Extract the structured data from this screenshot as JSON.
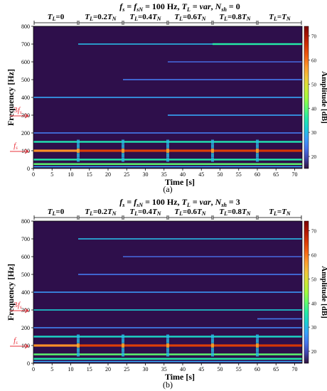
{
  "figure": {
    "panels": [
      {
        "caption": "(a)",
        "title_parts": [
          {
            "t": "f",
            "i": true
          },
          {
            "t": "s",
            "i": true,
            "sub": true
          },
          {
            "t": " = ",
            "i": false
          },
          {
            "t": "f",
            "i": true
          },
          {
            "t": "sN",
            "i": true,
            "sub": true
          },
          {
            "t": " = 100 Hz, ",
            "i": false
          },
          {
            "t": "T",
            "i": true
          },
          {
            "t": "L",
            "i": true,
            "sub": true
          },
          {
            "t": " = ",
            "i": false
          },
          {
            "t": "var",
            "i": true
          },
          {
            "t": ", ",
            "i": false
          },
          {
            "t": "N",
            "i": true
          },
          {
            "t": "sh",
            "i": true,
            "sub": true
          },
          {
            "t": " = 0",
            "i": false
          }
        ]
      },
      {
        "caption": "(b)",
        "title_parts": [
          {
            "t": "f",
            "i": true
          },
          {
            "t": "s",
            "i": true,
            "sub": true
          },
          {
            "t": " = ",
            "i": false
          },
          {
            "t": "f",
            "i": true
          },
          {
            "t": "sN",
            "i": true,
            "sub": true
          },
          {
            "t": " = 100 Hz, ",
            "i": false
          },
          {
            "t": "T",
            "i": true
          },
          {
            "t": "L",
            "i": true,
            "sub": true
          },
          {
            "t": " = ",
            "i": false
          },
          {
            "t": "var",
            "i": true
          },
          {
            "t": ", ",
            "i": false
          },
          {
            "t": "N",
            "i": true
          },
          {
            "t": "sh",
            "i": true,
            "sub": true
          },
          {
            "t": " = 3",
            "i": false
          }
        ]
      }
    ],
    "load_segments": [
      {
        "label": "TL=0",
        "x0": 0,
        "x1": 12
      },
      {
        "label": "TL=0.2TN",
        "x0": 12,
        "x1": 24
      },
      {
        "label": "TL=0.4TN",
        "x0": 24,
        "x1": 36
      },
      {
        "label": "TL=0.6TN",
        "x0": 36,
        "x1": 48
      },
      {
        "label": "TL=0.8TN",
        "x0": 48,
        "x1": 60
      },
      {
        "label": "TL=TN",
        "x0": 60,
        "x1": 72
      }
    ],
    "annotations": {
      "fs": "fs",
      "three_fs": "3fs"
    },
    "colors": {
      "background": "#2e0f4b",
      "annotation": "#e8303a",
      "colormap": [
        "#30123b",
        "#4145ab",
        "#4675ed",
        "#39a2fc",
        "#1bcfd4",
        "#24eca6",
        "#61fc6c",
        "#a4fc3b",
        "#d1e834",
        "#f3c63a",
        "#fe9b2d",
        "#f36315",
        "#d93806",
        "#b11901",
        "#7a0403"
      ]
    }
  },
  "chart_data": [
    {
      "type": "heatmap",
      "title": "fs = fsN = 100 Hz, TL = var, Nsh = 0",
      "xlabel": "Time [s]",
      "ylabel": "Frequency [Hz]",
      "colorbar_label": "Amplitude [dB]",
      "xlim": [
        0,
        72
      ],
      "ylim": [
        0,
        800
      ],
      "x_ticks": [
        0,
        5,
        10,
        15,
        20,
        25,
        30,
        35,
        40,
        45,
        50,
        55,
        60,
        65,
        70
      ],
      "y_ticks": [
        0,
        100,
        200,
        300,
        400,
        500,
        600,
        700,
        800
      ],
      "clim": [
        15,
        74
      ],
      "colorbar_ticks": [
        20,
        30,
        40,
        50,
        60,
        70
      ],
      "grid": false,
      "segment_boundaries_s": [
        12,
        24,
        36,
        48,
        60
      ],
      "bands": [
        {
          "freq": 10,
          "segments": [
            [
              0,
              72,
              28
            ]
          ]
        },
        {
          "freq": 25,
          "segments": [
            [
              0,
              72,
              40
            ]
          ]
        },
        {
          "freq": 50,
          "segments": [
            [
              0,
              72,
              36
            ]
          ]
        },
        {
          "freq": 100,
          "segments": [
            [
              0,
              12,
              58
            ],
            [
              12,
              60,
              65
            ],
            [
              60,
              72,
              66
            ]
          ]
        },
        {
          "freq": 150,
          "segments": [
            [
              0,
              72,
              35
            ]
          ]
        },
        {
          "freq": 200,
          "segments": [
            [
              0,
              72,
              24
            ]
          ]
        },
        {
          "freq": 300,
          "segments": [
            [
              36,
              72,
              28
            ]
          ]
        },
        {
          "freq": 400,
          "segments": [
            [
              0,
              72,
              28
            ]
          ]
        },
        {
          "freq": 500,
          "segments": [
            [
              24,
              72,
              24
            ]
          ]
        },
        {
          "freq": 600,
          "segments": [
            [
              36,
              72,
              22
            ]
          ]
        },
        {
          "freq": 700,
          "segments": [
            [
              12,
              48,
              30
            ],
            [
              48,
              72,
              36
            ]
          ]
        }
      ]
    },
    {
      "type": "heatmap",
      "title": "fs = fsN = 100 Hz, TL = var, Nsh = 3",
      "xlabel": "Time [s]",
      "ylabel": "Frequency [Hz]",
      "colorbar_label": "Amplitude [dB]",
      "xlim": [
        0,
        72
      ],
      "ylim": [
        0,
        800
      ],
      "x_ticks": [
        0,
        5,
        10,
        15,
        20,
        25,
        30,
        35,
        40,
        45,
        50,
        55,
        60,
        65,
        70
      ],
      "y_ticks": [
        0,
        100,
        200,
        300,
        400,
        500,
        600,
        700,
        800
      ],
      "clim": [
        15,
        74
      ],
      "colorbar_ticks": [
        20,
        30,
        40,
        50,
        60,
        70
      ],
      "grid": false,
      "segment_boundaries_s": [
        12,
        24,
        36,
        48,
        60
      ],
      "bands": [
        {
          "freq": 10,
          "segments": [
            [
              0,
              72,
              28
            ]
          ]
        },
        {
          "freq": 25,
          "segments": [
            [
              0,
              72,
              36
            ]
          ]
        },
        {
          "freq": 50,
          "segments": [
            [
              0,
              72,
              40
            ]
          ]
        },
        {
          "freq": 100,
          "segments": [
            [
              0,
              12,
              58
            ],
            [
              12,
              60,
              65
            ],
            [
              60,
              72,
              66
            ]
          ]
        },
        {
          "freq": 150,
          "segments": [
            [
              0,
              72,
              33
            ]
          ]
        },
        {
          "freq": 200,
          "segments": [
            [
              0,
              72,
              25
            ]
          ]
        },
        {
          "freq": 250,
          "segments": [
            [
              60,
              72,
              24
            ]
          ]
        },
        {
          "freq": 300,
          "segments": [
            [
              0,
              72,
              32
            ]
          ]
        },
        {
          "freq": 400,
          "segments": [
            [
              0,
              72,
              27
            ]
          ]
        },
        {
          "freq": 500,
          "segments": [
            [
              12,
              72,
              24
            ]
          ]
        },
        {
          "freq": 600,
          "segments": [
            [
              24,
              72,
              22
            ]
          ]
        },
        {
          "freq": 700,
          "segments": [
            [
              12,
              72,
              30
            ]
          ]
        }
      ]
    }
  ]
}
